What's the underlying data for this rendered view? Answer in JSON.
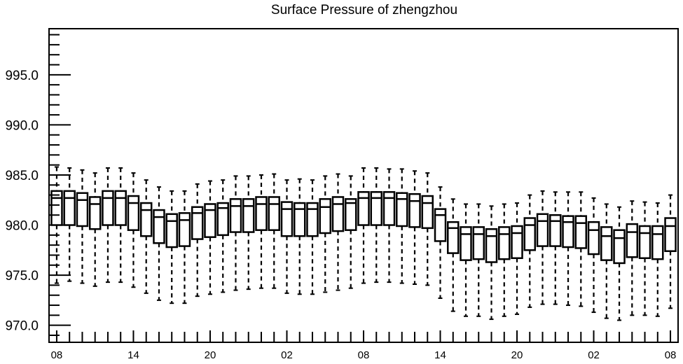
{
  "chart_data": {
    "type": "boxplot",
    "title": "Surface Pressure of zhengzhou",
    "xlabel": "",
    "ylabel": "",
    "ylim": [
      968.3,
      999.6
    ],
    "yticks": [
      "970.0",
      "975.0",
      "980.0",
      "985.0",
      "990.0",
      "995.0"
    ],
    "ytick_values": [
      970,
      975,
      980,
      985,
      990,
      995
    ],
    "xlim": [
      -0.6,
      48.6
    ],
    "xtick_labels": [
      "08",
      "14",
      "20",
      "02",
      "08",
      "14",
      "20",
      "02",
      "08"
    ],
    "xtick_positions": [
      0,
      6,
      12,
      18,
      24,
      30,
      36,
      42,
      48
    ],
    "grid": false,
    "series": [
      {
        "x": [
          0,
          1,
          2,
          3,
          4,
          5,
          6,
          7,
          8,
          9,
          10,
          11,
          12,
          13,
          14,
          15,
          16,
          17,
          18,
          19,
          20,
          21,
          22,
          23,
          24,
          25,
          26,
          27,
          28,
          29,
          30,
          31,
          32,
          33,
          34,
          35,
          36,
          37,
          38,
          39,
          40,
          41,
          42,
          43,
          44,
          45,
          46,
          47,
          48
        ],
        "whisker_low": [
          974.2,
          974.4,
          974.2,
          973.9,
          974.3,
          974.3,
          973.8,
          973.2,
          972.5,
          972.2,
          972.2,
          972.9,
          973.1,
          973.3,
          973.5,
          973.6,
          973.7,
          973.7,
          973.2,
          973.1,
          973.1,
          973.3,
          973.5,
          973.7,
          974.2,
          974.3,
          974.3,
          974.2,
          974.1,
          974.0,
          972.7,
          971.4,
          970.9,
          970.9,
          970.6,
          970.9,
          971.1,
          971.8,
          972.1,
          972.1,
          972.0,
          971.9,
          971.3,
          970.7,
          970.5,
          971.0,
          971.0,
          970.9,
          971.7
        ],
        "q1": [
          980.0,
          980.0,
          979.9,
          979.6,
          980.0,
          980.0,
          979.5,
          978.9,
          978.2,
          977.8,
          977.9,
          978.6,
          978.8,
          979.0,
          979.3,
          979.3,
          979.5,
          979.5,
          978.9,
          978.9,
          978.9,
          979.2,
          979.4,
          979.5,
          980.0,
          980.0,
          980.0,
          979.9,
          979.8,
          979.7,
          978.4,
          977.2,
          976.5,
          976.6,
          976.3,
          976.6,
          976.7,
          977.5,
          977.9,
          977.9,
          977.8,
          977.7,
          977.1,
          976.5,
          976.2,
          976.8,
          976.7,
          976.6,
          977.4
        ],
        "median": [
          982.7,
          982.7,
          982.5,
          982.1,
          982.7,
          982.7,
          982.2,
          981.5,
          980.8,
          980.4,
          980.5,
          981.2,
          981.5,
          981.7,
          981.9,
          981.9,
          982.1,
          982.1,
          981.6,
          981.6,
          981.6,
          981.8,
          982.1,
          982.2,
          982.7,
          982.7,
          982.7,
          982.6,
          982.4,
          982.2,
          981.0,
          979.7,
          979.1,
          979.1,
          978.9,
          979.1,
          979.2,
          980.0,
          980.4,
          980.4,
          980.3,
          980.2,
          979.5,
          978.9,
          978.7,
          979.3,
          979.2,
          979.1,
          979.9
        ],
        "q3": [
          983.4,
          983.4,
          983.2,
          982.8,
          983.4,
          983.4,
          982.9,
          982.2,
          981.5,
          981.1,
          981.2,
          981.8,
          982.1,
          982.2,
          982.6,
          982.6,
          982.8,
          982.8,
          982.3,
          982.2,
          982.2,
          982.6,
          982.8,
          982.6,
          983.3,
          983.3,
          983.3,
          983.2,
          983.1,
          982.9,
          981.6,
          980.3,
          979.8,
          979.8,
          979.6,
          979.8,
          979.9,
          980.7,
          981.1,
          981.0,
          980.9,
          980.9,
          980.3,
          979.8,
          979.5,
          980.1,
          979.9,
          979.9,
          980.7
        ],
        "whisker_high": [
          985.8,
          985.7,
          985.5,
          985.2,
          985.7,
          985.7,
          985.2,
          984.5,
          983.8,
          983.4,
          983.4,
          984.1,
          984.4,
          984.5,
          984.9,
          984.9,
          985.0,
          985.1,
          984.5,
          984.6,
          984.5,
          984.9,
          985.1,
          984.9,
          985.7,
          985.7,
          985.6,
          985.6,
          985.4,
          985.2,
          983.8,
          982.6,
          982.1,
          982.1,
          981.9,
          982.1,
          982.2,
          983.0,
          983.4,
          983.3,
          983.3,
          983.3,
          982.7,
          982.1,
          981.8,
          982.4,
          982.3,
          982.2,
          983.0
        ]
      }
    ]
  }
}
